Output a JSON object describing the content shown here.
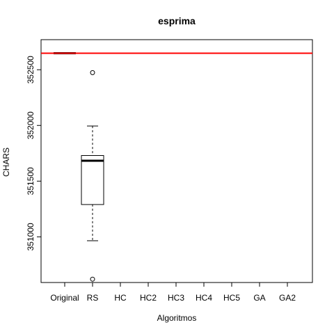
{
  "chart_data": {
    "type": "box",
    "title": "esprima",
    "xlabel": "Algoritmos",
    "ylabel": "CHARS",
    "categories": [
      "Original",
      "RS",
      "HC",
      "HC2",
      "HC3",
      "HC4",
      "HC5",
      "GA",
      "GA2"
    ],
    "yticks": [
      351000,
      351500,
      352000,
      352500
    ],
    "ytick_labels": [
      "351000",
      "351500",
      "352000",
      "352500"
    ],
    "ylim": [
      350590,
      352770
    ],
    "reference_line": {
      "value": 352648,
      "color": "#ff0000"
    },
    "boxes": [
      {
        "category": "Original",
        "min": 352648,
        "q1": 352648,
        "median": 352648,
        "q3": 352648,
        "max": 352648,
        "outliers": []
      },
      {
        "category": "RS",
        "min": 350965,
        "q1": 351290,
        "median": 351683,
        "q3": 351730,
        "max": 351995,
        "outliers": [
          352474,
          350620
        ]
      }
    ]
  },
  "colors": {
    "reference_line": "#ff0000",
    "box_stroke": "#000000",
    "background": "#ffffff"
  }
}
